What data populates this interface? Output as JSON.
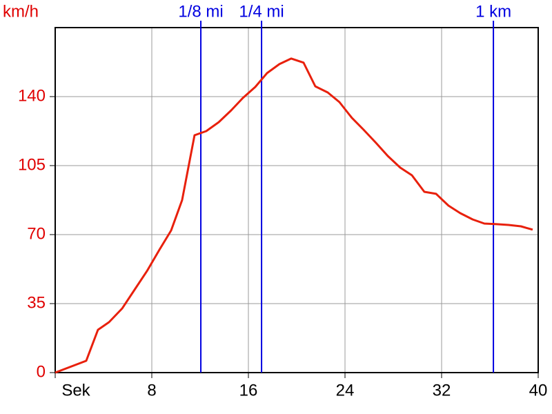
{
  "chart_data": {
    "type": "line",
    "y_label": "km/h",
    "x": [
      0,
      2.57,
      3.54,
      4.46,
      5.54,
      6.57,
      7.6,
      8.63,
      9.6,
      10.51,
      11.54,
      12.51,
      13.54,
      14.57,
      15.54,
      16.57,
      17.54,
      18.57,
      19.54,
      20.57,
      21.54,
      22.57,
      23.54,
      24.57,
      25.54,
      26.57,
      27.54,
      28.57,
      29.54,
      30.57,
      31.54,
      32.57,
      33.54,
      34.57,
      35.54,
      36.57,
      37.54,
      38.57,
      39.54
    ],
    "series": [
      {
        "color": "#e8200c",
        "values": [
          0,
          6,
          21.7,
          25.6,
          32.5,
          42,
          51.5,
          62.3,
          72.1,
          87.5,
          120.4,
          122.5,
          127,
          133,
          139.3,
          144.9,
          151.9,
          156.5,
          159.3,
          157.2,
          145.2,
          142.1,
          137.2,
          129.2,
          123.2,
          116.5,
          109.9,
          104,
          100.1,
          91.7,
          90.7,
          84.7,
          80.9,
          77.7,
          75.6,
          75.3,
          74.9,
          74.2,
          72.5
        ]
      }
    ],
    "markers": [
      {
        "label": "1/8 mi",
        "x": 12.06
      },
      {
        "label": "1/4 mi",
        "x": 17.09
      },
      {
        "label": "1 km",
        "x": 36.29
      }
    ],
    "marker_color": "#0000e0",
    "xlim": [
      0,
      40
    ],
    "xticks": [
      {
        "value": 0,
        "label": "Sek"
      },
      8,
      16,
      24,
      32,
      40
    ],
    "ylim": [
      0,
      175
    ],
    "yticks": [
      0,
      35,
      70,
      105,
      140
    ],
    "grid": true
  }
}
